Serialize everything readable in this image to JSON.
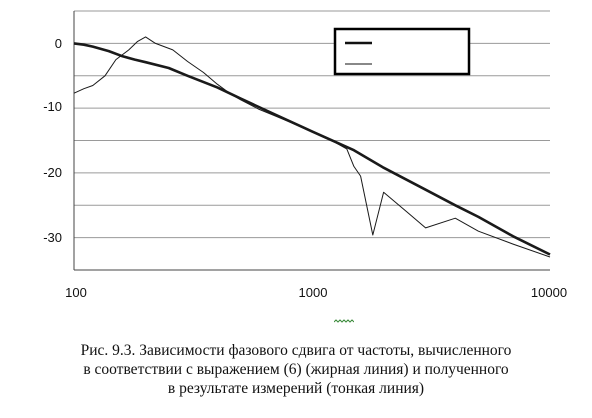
{
  "chart_data": {
    "type": "line",
    "xscale": "log",
    "xlim": [
      100,
      10000
    ],
    "ylim": [
      -35,
      5
    ],
    "x_ticks": [
      "100",
      "1000",
      "10000"
    ],
    "y_ticks": [
      "0",
      "-10",
      "-20",
      "-30"
    ],
    "grid": "horizontal",
    "legend": "top-right, entries without text (thick line, thin line)",
    "colors": {
      "line": "#1a1a1a",
      "grid": "#9a9a9a",
      "legend_border": "#000000"
    },
    "series": [
      {
        "style": "thick",
        "points": [
          [
            100,
            0
          ],
          [
            110,
            -0.2
          ],
          [
            120,
            -0.5
          ],
          [
            140,
            -1.2
          ],
          [
            160,
            -2
          ],
          [
            180,
            -2.5
          ],
          [
            200,
            -2.9
          ],
          [
            250,
            -3.8
          ],
          [
            300,
            -5
          ],
          [
            400,
            -6.8
          ],
          [
            500,
            -8.5
          ],
          [
            700,
            -11
          ],
          [
            1000,
            -13.6
          ],
          [
            1500,
            -16.5
          ],
          [
            2000,
            -19.2
          ],
          [
            3000,
            -22.6
          ],
          [
            4000,
            -25
          ],
          [
            5000,
            -26.8
          ],
          [
            7000,
            -29.8
          ],
          [
            10000,
            -32.6
          ]
        ]
      },
      {
        "style": "thin",
        "points": [
          [
            100,
            -7.7
          ],
          [
            110,
            -7
          ],
          [
            120,
            -6.5
          ],
          [
            135,
            -5
          ],
          [
            150,
            -2.5
          ],
          [
            170,
            -1
          ],
          [
            185,
            0.3
          ],
          [
            200,
            1
          ],
          [
            220,
            0
          ],
          [
            260,
            -1
          ],
          [
            300,
            -2.8
          ],
          [
            350,
            -4.5
          ],
          [
            400,
            -6.3
          ],
          [
            450,
            -7.7
          ],
          [
            500,
            -8.7
          ],
          [
            600,
            -10.2
          ],
          [
            700,
            -11.2
          ],
          [
            800,
            -12.1
          ],
          [
            900,
            -12.9
          ],
          [
            1000,
            -13.6
          ],
          [
            1100,
            -14.4
          ],
          [
            1250,
            -15.3
          ],
          [
            1400,
            -16.3
          ],
          [
            1500,
            -19
          ],
          [
            1600,
            -20.5
          ],
          [
            1800,
            -29.6
          ],
          [
            2000,
            -23
          ],
          [
            2500,
            -26
          ],
          [
            3000,
            -28.5
          ],
          [
            4000,
            -27
          ],
          [
            5000,
            -29
          ],
          [
            7000,
            -31
          ],
          [
            10000,
            -33
          ]
        ]
      }
    ],
    "caption": [
      "Рис. 9.3. Зависимости фазового сдвига от частоты, вычисленного",
      "в соответствии с выражением (6) (жирная линия) и полученного",
      "в результате измерений (тонкая линия)"
    ]
  }
}
